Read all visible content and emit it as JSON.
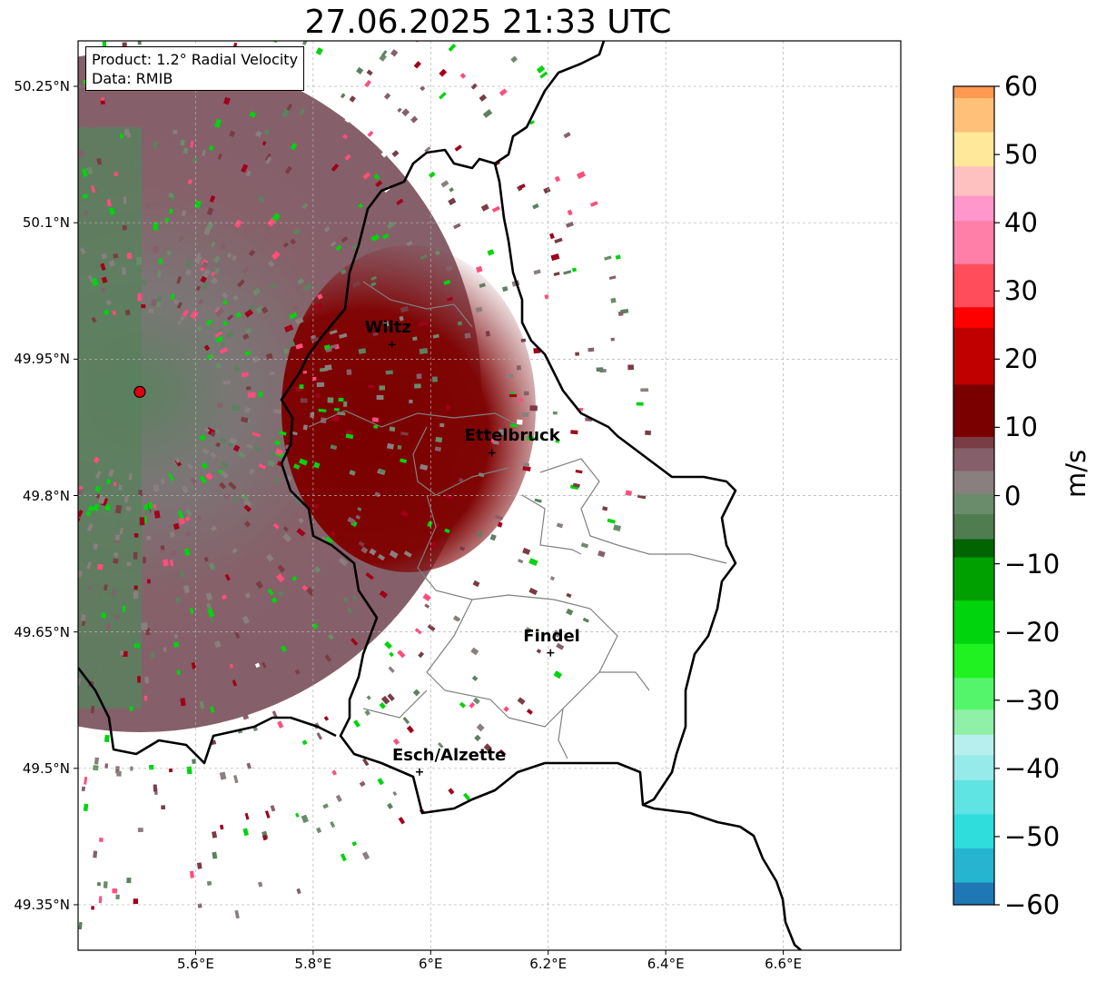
{
  "title": "27.06.2025 21:33 UTC",
  "info_box": {
    "product": "Product: 1.2° Radial Velocity",
    "data": "Data: RMIB"
  },
  "map": {
    "extent": {
      "lon_min": 5.4,
      "lon_max": 6.8,
      "lat_min": 49.3,
      "lat_max": 50.3
    },
    "lat_ticks": [
      {
        "value": 50.25,
        "label": "50.25°N"
      },
      {
        "value": 50.1,
        "label": "50.1°N"
      },
      {
        "value": 49.95,
        "label": "49.95°N"
      },
      {
        "value": 49.8,
        "label": "49.8°N"
      },
      {
        "value": 49.65,
        "label": "49.65°N"
      },
      {
        "value": 49.5,
        "label": "49.5°N"
      },
      {
        "value": 49.35,
        "label": "49.35°N"
      }
    ],
    "lon_ticks": [
      {
        "value": 5.6,
        "label": "5.6°E"
      },
      {
        "value": 5.8,
        "label": "5.8°E"
      },
      {
        "value": 6.0,
        "label": "6°E"
      },
      {
        "value": 6.2,
        "label": "6.2°E"
      },
      {
        "value": 6.4,
        "label": "6.4°E"
      },
      {
        "value": 6.6,
        "label": "6.6°E"
      }
    ],
    "gridlines": true,
    "radar_site": {
      "lon": 5.505,
      "lat": 49.914,
      "color": "#e0000f"
    },
    "cities": [
      {
        "name": "Wiltz",
        "lon": 5.934,
        "lat": 49.966
      },
      {
        "name": "Ettelbruck",
        "lon": 6.104,
        "lat": 49.847
      },
      {
        "name": "Findel",
        "lon": 6.204,
        "lat": 49.627
      },
      {
        "name": "Esch/Alzette",
        "lon": 5.981,
        "lat": 49.496
      }
    ]
  },
  "colorbar": {
    "label": "m/s",
    "min": -60,
    "max": 60,
    "ticks": [
      {
        "value": 60,
        "label": "60"
      },
      {
        "value": 50,
        "label": "50"
      },
      {
        "value": 40,
        "label": "40"
      },
      {
        "value": 30,
        "label": "30"
      },
      {
        "value": 20,
        "label": "20"
      },
      {
        "value": 10,
        "label": "10"
      },
      {
        "value": 0,
        "label": "0"
      },
      {
        "value": -10,
        "label": "−10"
      },
      {
        "value": -20,
        "label": "−20"
      },
      {
        "value": -30,
        "label": "−30"
      },
      {
        "value": -40,
        "label": "−40"
      },
      {
        "value": -50,
        "label": "−50"
      },
      {
        "value": -60,
        "label": "−60"
      }
    ],
    "stops": [
      {
        "value": -60,
        "color": "#1f77b4"
      },
      {
        "value": -55,
        "color": "#26b5d0"
      },
      {
        "value": -50,
        "color": "#2fdddd"
      },
      {
        "value": -45,
        "color": "#5fe3e3"
      },
      {
        "value": -40,
        "color": "#96eaea"
      },
      {
        "value": -37,
        "color": "#b7efee"
      },
      {
        "value": -34,
        "color": "#8ff0a8"
      },
      {
        "value": -30,
        "color": "#55f56b"
      },
      {
        "value": -25,
        "color": "#1ff220"
      },
      {
        "value": -20,
        "color": "#00d40c"
      },
      {
        "value": -13,
        "color": "#00a000"
      },
      {
        "value": -7,
        "color": "#006400"
      },
      {
        "value": -6,
        "color": "#4f7d50"
      },
      {
        "value": -1,
        "color": "#6b8c6b"
      },
      {
        "value": 1,
        "color": "#8a7f7f"
      },
      {
        "value": 5,
        "color": "#85606a"
      },
      {
        "value": 8,
        "color": "#7a3c45"
      },
      {
        "value": 9,
        "color": "#7a0000"
      },
      {
        "value": 20,
        "color": "#c00000"
      },
      {
        "value": 27,
        "color": "#ff0000"
      },
      {
        "value": 28,
        "color": "#ff4d5c"
      },
      {
        "value": 37,
        "color": "#ff7fa8"
      },
      {
        "value": 42,
        "color": "#ff96cc"
      },
      {
        "value": 45,
        "color": "#ffc0c0"
      },
      {
        "value": 50,
        "color": "#ffe89a"
      },
      {
        "value": 55,
        "color": "#ffc07a"
      },
      {
        "value": 60,
        "color": "#ff9a50"
      }
    ]
  }
}
